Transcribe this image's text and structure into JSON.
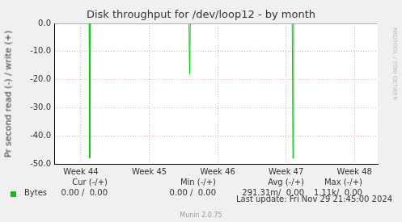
{
  "chart_data": {
    "type": "line",
    "title": "Disk throughput for /dev/loop12 - by month",
    "y_label": "Pr second read (-) / write (+)",
    "x": [
      43.61,
      44.12,
      44.13,
      44.14,
      45.58,
      45.59,
      45.6,
      47.09,
      47.1,
      47.11,
      48.34
    ],
    "series": [
      {
        "name": "Bytes",
        "color": "#00cc00",
        "values": [
          0,
          0,
          -48,
          0,
          0,
          -18,
          0,
          0,
          -48,
          0,
          0
        ]
      }
    ],
    "xlim": [
      43.61,
      48.34
    ],
    "xticks": [
      {
        "value": 44,
        "label": "Week 44"
      },
      {
        "value": 45,
        "label": "Week 45"
      },
      {
        "value": 46,
        "label": "Week 46"
      },
      {
        "value": 47,
        "label": "Week 47"
      },
      {
        "value": 48,
        "label": "Week 48"
      }
    ],
    "ylim": [
      -50,
      0
    ],
    "yticks": [
      {
        "value": -50,
        "label": "-50.0"
      },
      {
        "value": -40,
        "label": "-40.0"
      },
      {
        "value": -30,
        "label": "-30.0"
      },
      {
        "value": -20,
        "label": "-20.0"
      },
      {
        "value": -10,
        "label": "-10.0"
      },
      {
        "value": 0,
        "label": "0.0"
      }
    ],
    "grid": true,
    "legend_table": {
      "columns": [
        "Cur (-/+)",
        "Min (-/+)",
        "Avg (-/+)",
        "Max (-/+)"
      ],
      "rows": [
        [
          "0.00 /  0.00",
          "0.00 /  0.00",
          "291.31m/  0.00",
          "1.11k/  0.00"
        ]
      ]
    },
    "annotations": [
      "Last update: Fri Nov 29 21:45:00 2024",
      "Munin 2.0.75",
      "RRDTOOL / TOBI OETIKER"
    ]
  }
}
